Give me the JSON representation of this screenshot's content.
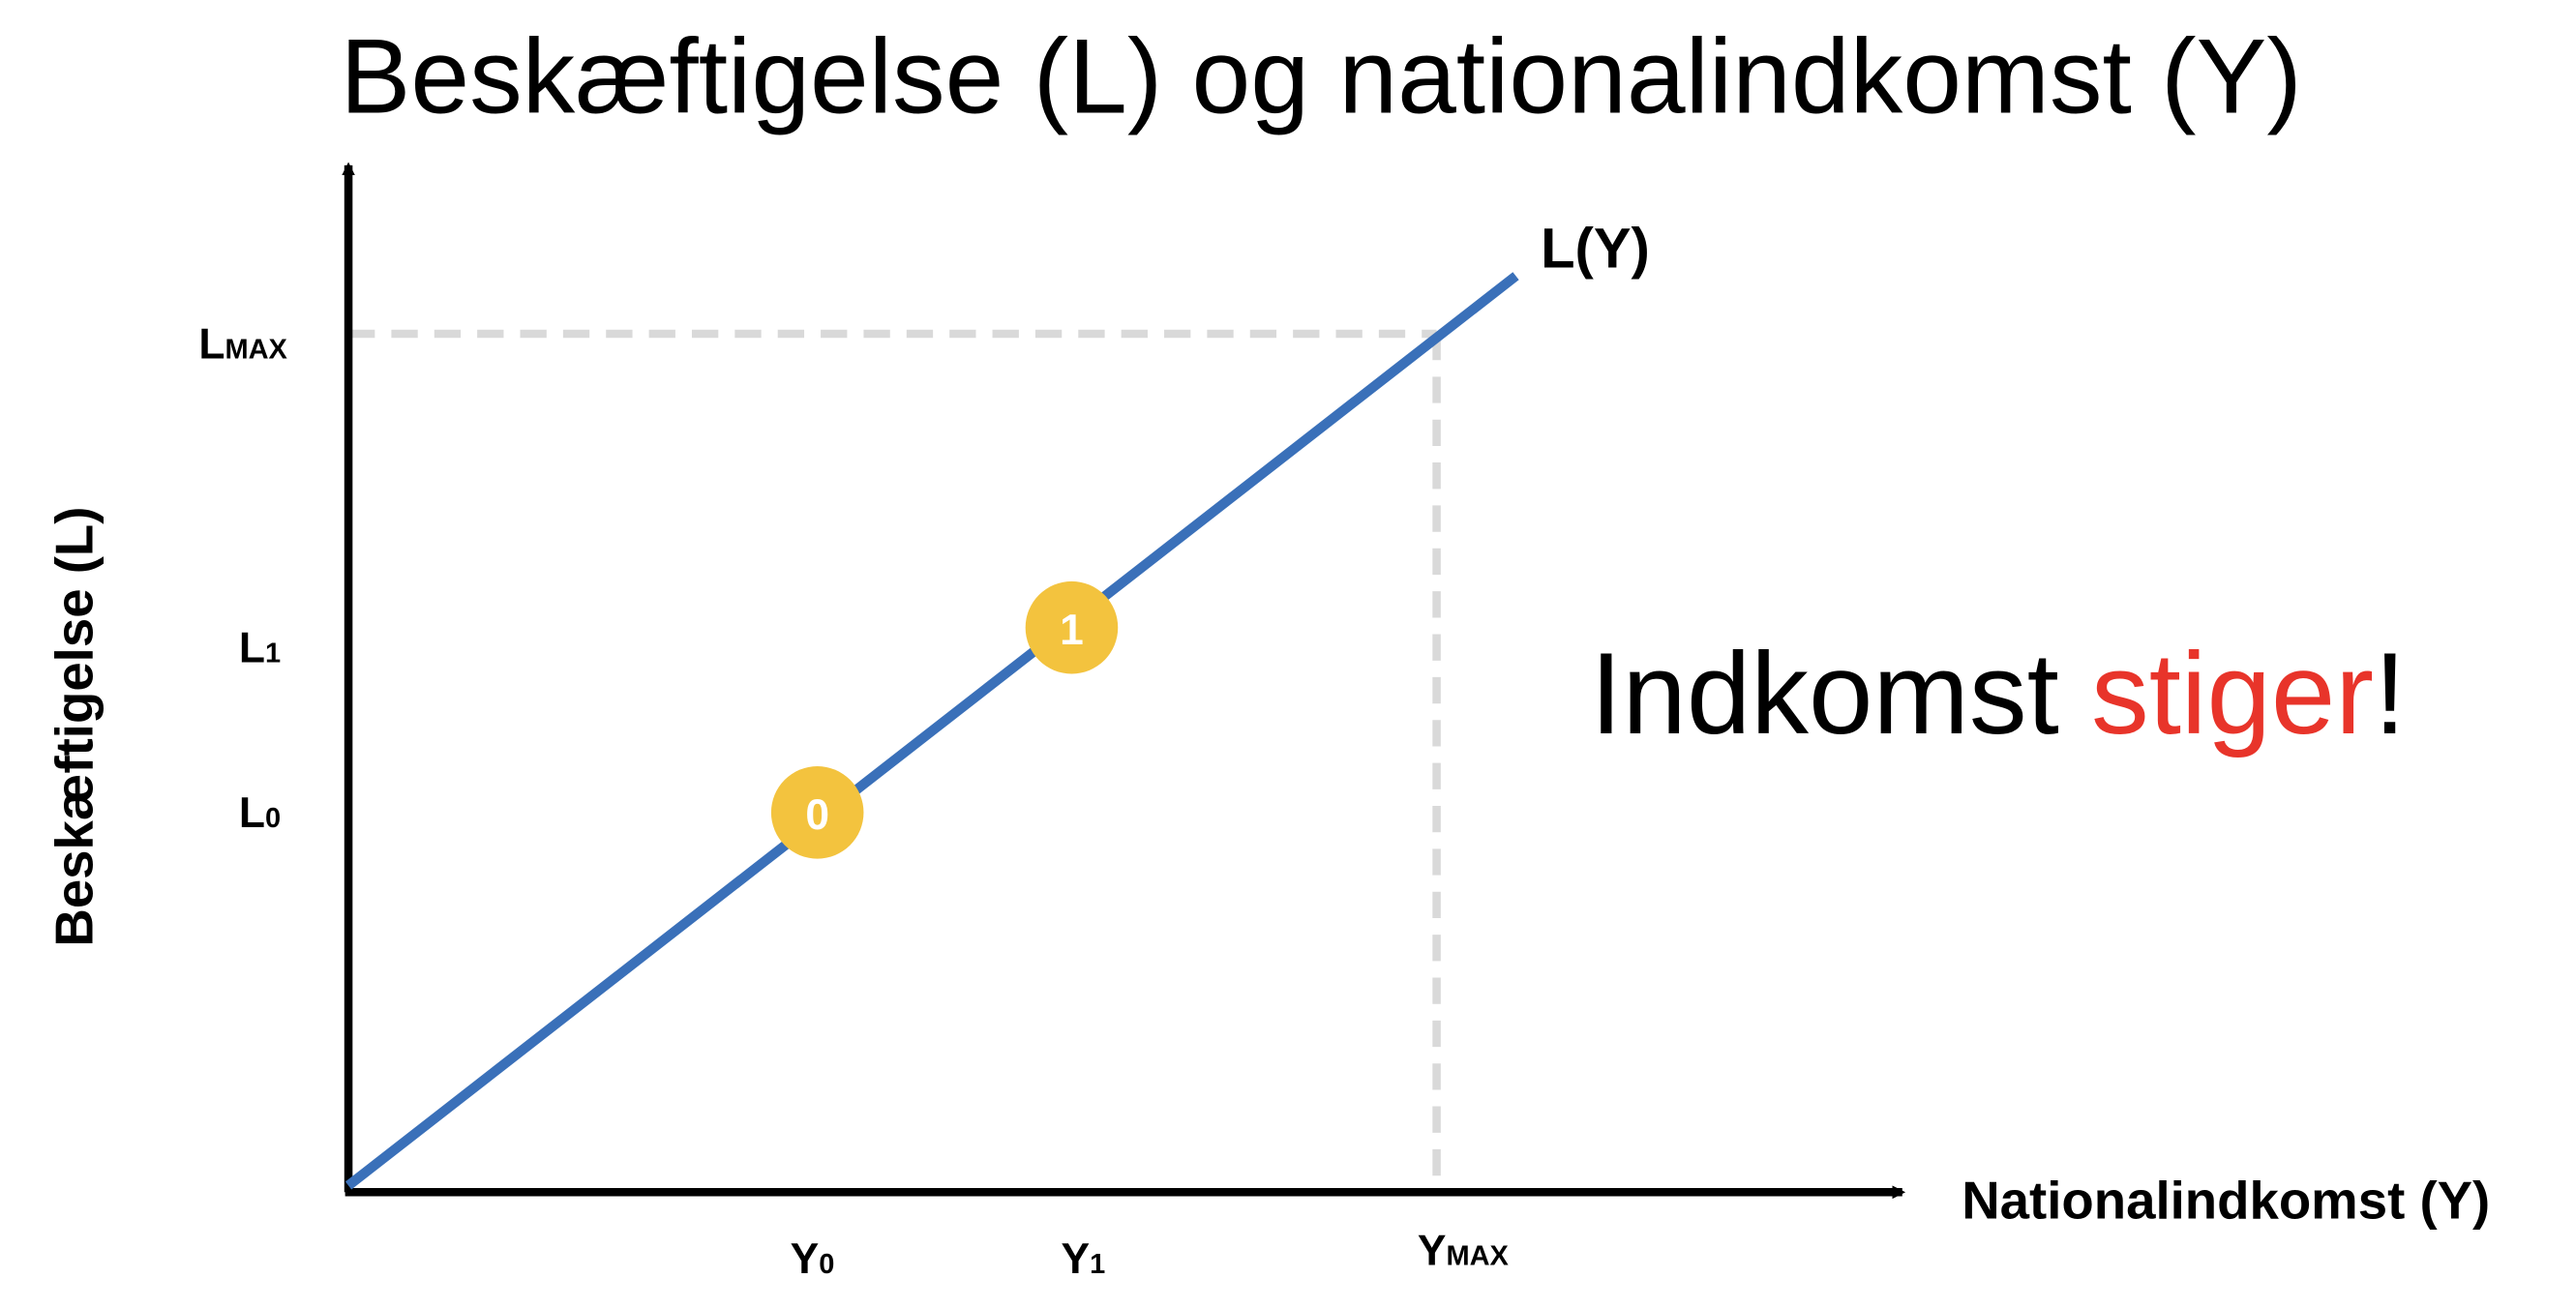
{
  "title": "Beskæftigelse (L) og nationalindkomst (Y)",
  "y_axis_label": "Beskæftigelse (L)",
  "x_axis_label": "Nationalindkomst (Y)",
  "curve_label": "L(Y)",
  "y_labels": [
    {
      "main": "L",
      "sub": "MAX"
    },
    {
      "main": "L",
      "sub": "1"
    },
    {
      "main": "L",
      "sub": "0"
    }
  ],
  "x_labels": [
    {
      "main": "Y",
      "sub": "0"
    },
    {
      "main": "Y",
      "sub": "1"
    },
    {
      "main": "Y",
      "sub": "MAX"
    }
  ],
  "points": [
    "0",
    "1"
  ],
  "annotation": {
    "before": "Indkomst ",
    "highlight": "stiger",
    "after": "!"
  }
}
